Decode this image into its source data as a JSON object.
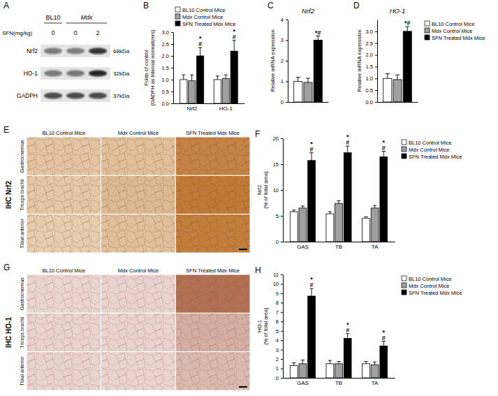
{
  "chart_data": [
    {
      "panel": "B",
      "type": "bar",
      "ylabel": [
        "Folds of control",
        "(GADPH as internal normalizers)"
      ],
      "categories": [
        "Nrf2",
        "HO-1"
      ],
      "ylim": [
        0,
        3
      ],
      "yticks": [
        {
          "value": 0,
          "label": "0.0"
        },
        0.5,
        {
          "value": 1,
          "label": "1.0"
        },
        1.5,
        {
          "value": 2,
          "label": "2.0"
        },
        2.5,
        {
          "value": 3,
          "label": "3.0"
        }
      ],
      "legend": "top",
      "series": [
        {
          "name": "BL10 Control Mice",
          "color": "#ffffff",
          "values": [
            1.0,
            1.0
          ],
          "errors": [
            0.2,
            0.15
          ]
        },
        {
          "name": "Mdx Control Mice",
          "color": "#a0a0a0",
          "values": [
            0.95,
            1.05
          ],
          "errors": [
            0.25,
            0.15
          ]
        },
        {
          "name": "SFN Treated Mdx Mice",
          "color": "#000000",
          "values": [
            2.0,
            2.2
          ],
          "errors": [
            0.35,
            0.45
          ],
          "annotations": [
            [
              "*",
              "#"
            ],
            [
              "*",
              "#"
            ]
          ]
        }
      ]
    },
    {
      "panel": "C",
      "type": "bar",
      "title": "Nrf2",
      "ylabel": [
        "Relative mRNA expression"
      ],
      "categories": [
        null
      ],
      "ylim": [
        0,
        4
      ],
      "yticks": [
        0,
        1,
        2,
        3,
        4
      ],
      "series": [
        {
          "color": "#ffffff",
          "values": [
            1.0
          ],
          "errors": [
            0.2
          ]
        },
        {
          "color": "#a0a0a0",
          "values": [
            0.95
          ],
          "errors": [
            0.2
          ]
        },
        {
          "color": "#000000",
          "values": [
            3.0
          ],
          "errors": [
            0.2
          ],
          "annotations": [
            [
              "*#"
            ]
          ]
        }
      ]
    },
    {
      "panel": "D",
      "type": "bar",
      "title": "HO-1",
      "ylabel": [
        "Relative mRNA expression"
      ],
      "categories": [
        null
      ],
      "ylim": [
        0,
        3.5
      ],
      "yticks": [
        {
          "value": 0,
          "label": "0.0"
        },
        0.5,
        {
          "value": 1,
          "label": "1.0"
        },
        1.5,
        {
          "value": 2,
          "label": "2.0"
        },
        2.5,
        {
          "value": 3,
          "label": "3.0"
        }
      ],
      "legend": "right",
      "series": [
        {
          "name": "BL10 Control Mice",
          "color": "#ffffff",
          "values": [
            1.0
          ],
          "errors": [
            0.2
          ]
        },
        {
          "name": "Mdx Control Mice",
          "color": "#a0a0a0",
          "values": [
            0.95
          ],
          "errors": [
            0.2
          ]
        },
        {
          "name": "SFN Treated Mdx Mice",
          "color": "#000000",
          "values": [
            3.0
          ],
          "errors": [
            0.2
          ],
          "annotations": [
            [
              "*#"
            ]
          ]
        }
      ]
    },
    {
      "panel": "F",
      "type": "bar",
      "ylabel": [
        "Nrf2",
        "(% of total area)"
      ],
      "categories": [
        "GAS",
        "TB",
        "TA"
      ],
      "ylim": [
        0,
        20
      ],
      "yticks": [
        0,
        5,
        10,
        15,
        20
      ],
      "legend": "right",
      "series": [
        {
          "name": "BL10 Control Mice",
          "color": "#ffffff",
          "values": [
            5.8,
            5.4,
            4.5
          ],
          "errors": [
            0.3,
            0.4,
            0.3
          ]
        },
        {
          "name": "Mdx Control  Mice",
          "color": "#a0a0a0",
          "values": [
            6.5,
            7.4,
            6.5
          ],
          "errors": [
            0.4,
            0.5,
            0.5
          ]
        },
        {
          "name": "SFN Treated Mdx Mice",
          "color": "#000000",
          "values": [
            15.7,
            17.2,
            16.4
          ],
          "errors": [
            1.5,
            1.3,
            1.1
          ],
          "annotations": [
            [
              "*",
              "#"
            ],
            [
              "*",
              "#"
            ],
            [
              "*",
              "#"
            ]
          ]
        }
      ]
    },
    {
      "panel": "H",
      "type": "bar",
      "ylabel": [
        "HO-1",
        "(% of total area)"
      ],
      "categories": [
        "GAS",
        "TB",
        "TA"
      ],
      "ylim": [
        0,
        11
      ],
      "yticks": [
        0,
        1,
        2,
        3,
        4,
        5,
        6,
        7,
        8,
        9,
        10,
        11
      ],
      "legend": "right",
      "series": [
        {
          "name": "BL10 Control Mice",
          "color": "#ffffff",
          "values": [
            1.3,
            1.5,
            1.5
          ],
          "errors": [
            0.3,
            0.35,
            0.25
          ]
        },
        {
          "name": "Mdx Control  Mice",
          "color": "#a0a0a0",
          "values": [
            1.5,
            1.5,
            1.4
          ],
          "errors": [
            0.4,
            0.25,
            0.3
          ]
        },
        {
          "name": "SFN Treated Mdx Mice",
          "color": "#000000",
          "values": [
            8.7,
            4.2,
            3.4
          ],
          "errors": [
            0.8,
            0.5,
            0.5
          ],
          "annotations": [
            [
              "*",
              "#"
            ],
            [
              "*",
              "#"
            ],
            [
              "*",
              "#"
            ]
          ]
        }
      ]
    }
  ],
  "blot": {
    "panel": "A",
    "groups": [
      "BL10",
      "Mdx"
    ],
    "treatment": "SFN(mg/kg)",
    "doses": [
      0,
      0,
      2
    ],
    "rows": [
      {
        "protein": "Nrf2",
        "size": "68kDa"
      },
      {
        "protein": "HO-1",
        "size": "32kDa"
      },
      {
        "protein": "GADPH",
        "size": "37kDa"
      }
    ]
  },
  "ihc": [
    {
      "panel": "E",
      "label": "IHC Nrf2",
      "columns": [
        "BL10 Control Mice",
        "Mdx Control Mice",
        "SFN Treated Mdx Mice"
      ],
      "rows": [
        "Gastrocnemius",
        "Triceps brachii",
        "Tibial anterior"
      ]
    },
    {
      "panel": "G",
      "label": "IHC HO-1",
      "columns": [
        "BL10 Control Mice",
        "Mdx Control Mice",
        "SFN Treated Mdx Mice"
      ],
      "rows": [
        "Gastrocnemius",
        "Triceps brachii",
        "Tibial anterior"
      ]
    }
  ]
}
